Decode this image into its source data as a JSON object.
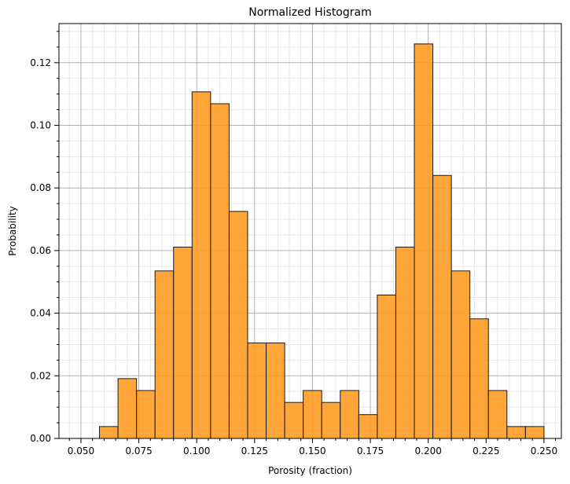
{
  "chart_data": {
    "type": "bar",
    "title": "Normalized Histogram",
    "xlabel": "Porosity (fraction)",
    "ylabel": "Probability",
    "xlim": [
      0.0405,
      0.2575
    ],
    "ylim": [
      0.0,
      0.1325
    ],
    "xticks": [
      0.05,
      0.075,
      0.1,
      0.125,
      0.15,
      0.175,
      0.2,
      0.225,
      0.25
    ],
    "xtick_labels": [
      "0.050",
      "0.075",
      "0.100",
      "0.125",
      "0.150",
      "0.175",
      "0.200",
      "0.225",
      "0.250"
    ],
    "yticks": [
      0.0,
      0.02,
      0.04,
      0.06,
      0.08,
      0.1,
      0.12
    ],
    "ytick_labels": [
      "0.00",
      "0.02",
      "0.04",
      "0.06",
      "0.08",
      "0.10",
      "0.12"
    ],
    "grid": true,
    "minor_grid": true,
    "bar_color": "#ff9a1f",
    "edge_color": "#1a1a1a",
    "bins": [
      {
        "left": 0.058,
        "right": 0.066,
        "value": 0.0038
      },
      {
        "left": 0.066,
        "right": 0.074,
        "value": 0.0191
      },
      {
        "left": 0.074,
        "right": 0.082,
        "value": 0.0153
      },
      {
        "left": 0.082,
        "right": 0.09,
        "value": 0.0535
      },
      {
        "left": 0.09,
        "right": 0.098,
        "value": 0.0611
      },
      {
        "left": 0.098,
        "right": 0.106,
        "value": 0.1107
      },
      {
        "left": 0.106,
        "right": 0.114,
        "value": 0.1069
      },
      {
        "left": 0.114,
        "right": 0.122,
        "value": 0.0725
      },
      {
        "left": 0.122,
        "right": 0.13,
        "value": 0.0305
      },
      {
        "left": 0.13,
        "right": 0.138,
        "value": 0.0305
      },
      {
        "left": 0.138,
        "right": 0.146,
        "value": 0.0115
      },
      {
        "left": 0.146,
        "right": 0.154,
        "value": 0.0153
      },
      {
        "left": 0.154,
        "right": 0.162,
        "value": 0.0115
      },
      {
        "left": 0.162,
        "right": 0.17,
        "value": 0.0153
      },
      {
        "left": 0.17,
        "right": 0.178,
        "value": 0.0076
      },
      {
        "left": 0.178,
        "right": 0.186,
        "value": 0.0458
      },
      {
        "left": 0.186,
        "right": 0.194,
        "value": 0.0611
      },
      {
        "left": 0.194,
        "right": 0.202,
        "value": 0.126
      },
      {
        "left": 0.202,
        "right": 0.21,
        "value": 0.084
      },
      {
        "left": 0.21,
        "right": 0.218,
        "value": 0.0535
      },
      {
        "left": 0.218,
        "right": 0.226,
        "value": 0.0382
      },
      {
        "left": 0.226,
        "right": 0.234,
        "value": 0.0153
      },
      {
        "left": 0.234,
        "right": 0.242,
        "value": 0.0038
      },
      {
        "left": 0.242,
        "right": 0.25,
        "value": 0.0038
      }
    ]
  }
}
